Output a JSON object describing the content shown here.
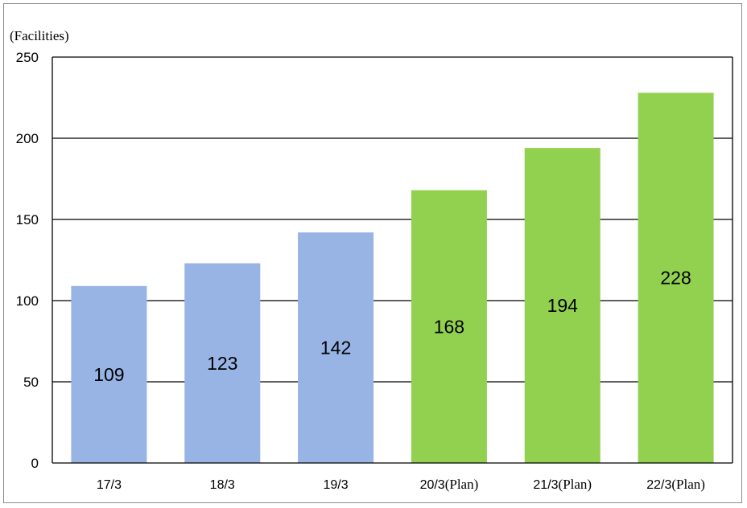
{
  "chart_data": {
    "type": "bar",
    "ylabel": "(Facilities)",
    "ylim": [
      0,
      250
    ],
    "yticks": [
      "0",
      "50",
      "100",
      "150",
      "200",
      "250"
    ],
    "grid": true,
    "categories": [
      "17/3",
      "18/3",
      "19/3",
      "20/3",
      "21/3",
      "22/3"
    ],
    "category_suffixes": [
      "",
      "",
      "",
      "(Plan)",
      "(Plan)",
      "(Plan)"
    ],
    "values": [
      109,
      123,
      142,
      168,
      194,
      228
    ],
    "bar_colors": [
      "#98B4E4",
      "#98B4E4",
      "#98B4E4",
      "#92D050",
      "#92D050",
      "#92D050"
    ]
  }
}
